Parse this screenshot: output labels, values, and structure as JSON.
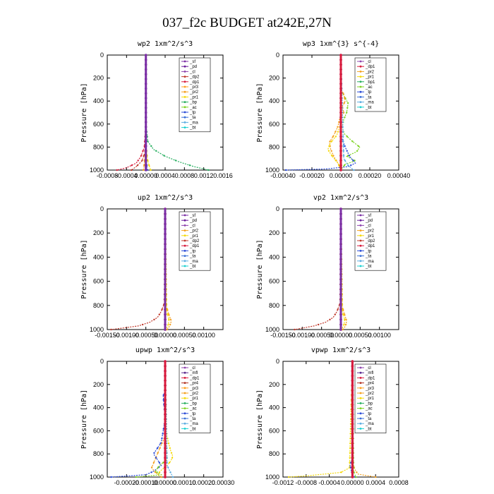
{
  "figure_title": "037_f2c  BUDGET at242E,27N",
  "colors": {
    "sf": "#7b2fa5",
    "pd": "#6a1b9a",
    "cl": "#8e44ad",
    "dp2": "#c0392b",
    "dp1": "#d81b3c",
    "pr3": "#ff9f1c",
    "pr2": "#f4a020",
    "pr1": "#f5d90a",
    "bp": "#27ae60",
    "ac": "#7ed321",
    "tp": "#2a4bd7",
    "ta": "#3a6fd8",
    "ma": "#5dade2",
    "bt": "#1bd1d1",
    "mfl": "#5b2c8f",
    "pr4": "#b03020",
    "frame": "#000000"
  },
  "chart_data": [
    {
      "type": "line",
      "title": "wp2   1xm^2/s^3",
      "ylabel": "Pressure  [hPa]",
      "ylim": [
        1000,
        0
      ],
      "xlim": [
        -0.0008,
        0.0016
      ],
      "xticks": [
        "-0.0008",
        "-0.0004",
        "0.00000",
        "0.0004",
        "0.0008",
        "0.0012",
        "0.0016"
      ],
      "xtick_values": [
        -0.0008,
        -0.0004,
        0.0,
        0.0004,
        0.0008,
        0.0012,
        0.0016
      ],
      "yticks": [
        "0",
        "200",
        "400",
        "600",
        "800",
        "1000"
      ],
      "ytick_values": [
        0,
        200,
        400,
        600,
        800,
        1000
      ],
      "legend": [
        "_sf",
        "_pd",
        "_cl",
        "_dp2",
        "_dp1",
        "_pr3",
        "_pr2",
        "_pr1",
        "_bp",
        "_ac",
        "_tp",
        "_ta",
        "_ma",
        "_bt"
      ],
      "series": [
        {
          "name": "_bp",
          "color": "bp",
          "p": [
            0,
            600,
            750,
            820,
            880,
            930,
            970,
            1000
          ],
          "x": [
            0,
            0,
            4e-05,
            0.00016,
            0.0004,
            0.0007,
            0.001,
            0.0013
          ]
        },
        {
          "name": "_dp1",
          "color": "dp1",
          "p": [
            0,
            600,
            800,
            880,
            940,
            980,
            1000
          ],
          "x": [
            0,
            0,
            -3e-05,
            -0.0001,
            -0.0002,
            -0.0004,
            -0.0006
          ]
        },
        {
          "name": "_dp2",
          "color": "dp2",
          "p": [
            0,
            700,
            850,
            920,
            970,
            1000
          ],
          "x": [
            0,
            0,
            -2e-05,
            -8e-05,
            -0.0002,
            -0.0003
          ]
        },
        {
          "name": "_pr1",
          "color": "pr1",
          "p": [
            0,
            800,
            900,
            950,
            1000
          ],
          "x": [
            0,
            1e-05,
            3e-05,
            6e-05,
            0.0001
          ]
        },
        {
          "name": "_pr2",
          "color": "pr2",
          "p": [
            0,
            850,
            930,
            1000
          ],
          "x": [
            0,
            -1e-05,
            -3e-05,
            -5e-05
          ]
        },
        {
          "name": "_tp",
          "color": "tp",
          "p": [
            0,
            900,
            1000
          ],
          "x": [
            0,
            1e-05,
            3e-05
          ]
        },
        {
          "name": "_sf",
          "color": "sf",
          "p": [
            0,
            1000
          ],
          "x": [
            0,
            0
          ]
        }
      ]
    },
    {
      "type": "line",
      "title": "wp3   1xm^{3} s^{-4}",
      "ylabel": "Pressure  [hPa]",
      "ylim": [
        1000,
        0
      ],
      "xlim": [
        -0.0004,
        0.0004
      ],
      "xticks": [
        "-0.00040",
        "-0.00020",
        "0.00000",
        "0.00020",
        "0.00040"
      ],
      "xtick_values": [
        -0.0004,
        -0.0002,
        0.0,
        0.0002,
        0.0004
      ],
      "yticks": [
        "0",
        "200",
        "400",
        "600",
        "800",
        "1000"
      ],
      "ytick_values": [
        0,
        200,
        400,
        600,
        800,
        1000
      ],
      "legend": [
        "_cl",
        "_dp1",
        "_pr2",
        "_pr1",
        "_bp1",
        "_ac",
        "_tp",
        "_ta",
        "_ma",
        "_bt"
      ],
      "series": [
        {
          "name": "_ac",
          "color": "ac",
          "p": [
            0,
            300,
            350,
            420,
            500,
            560,
            620,
            680,
            740,
            800,
            840,
            880,
            920,
            950,
            980,
            1000
          ],
          "x": [
            0,
            0,
            2e-05,
            5e-05,
            4e-05,
            2e-05,
            1e-05,
            2e-05,
            7e-05,
            0.00013,
            0.00011,
            4e-05,
            0.0001,
            3e-05,
            1e-05,
            0
          ]
        },
        {
          "name": "_pr2",
          "color": "pr2",
          "p": [
            0,
            300,
            340,
            400,
            450,
            500,
            560,
            620,
            700,
            760,
            820,
            880,
            940,
            1000
          ],
          "x": [
            0,
            0,
            2e-05,
            3e-05,
            1e-05,
            2e-05,
            -1e-05,
            -2e-05,
            -5e-05,
            -8e-05,
            -7e-05,
            -5e-05,
            -2e-05,
            0
          ]
        },
        {
          "name": "_pr1",
          "color": "pr1",
          "p": [
            0,
            600,
            700,
            760,
            820,
            880,
            940,
            1000
          ],
          "x": [
            0,
            0,
            -3e-05,
            -7e-05,
            -9e-05,
            -6e-05,
            -2e-05,
            0
          ]
        },
        {
          "name": "_tp",
          "color": "tp",
          "p": [
            0,
            700,
            800,
            880,
            940,
            970,
            990,
            1000
          ],
          "x": [
            0,
            0,
            3e-05,
            6e-05,
            0.0001,
            5e-05,
            -0.0001,
            -0.00038
          ]
        },
        {
          "name": "_ma",
          "color": "ma",
          "p": [
            0,
            900,
            960,
            1000
          ],
          "x": [
            0,
            2e-05,
            5e-05,
            9e-05
          ]
        },
        {
          "name": "_cl",
          "color": "cl",
          "p": [
            0,
            1000
          ],
          "x": [
            0,
            0
          ]
        },
        {
          "name": "_dp1",
          "color": "dp1",
          "p": [
            0,
            1000
          ],
          "x": [
            0,
            0
          ]
        }
      ]
    },
    {
      "type": "line",
      "title": "up2   1xm^2/s^3",
      "ylabel": "Pressure  [hPa]",
      "ylim": [
        1000,
        0
      ],
      "xlim": [
        -0.0015,
        0.0015
      ],
      "xticks": [
        "-0.00150",
        "-0.00100",
        "-0.00050",
        "0.00000",
        "0.00050",
        "0.00100"
      ],
      "xtick_values": [
        -0.0015,
        -0.001,
        -0.0005,
        0.0,
        0.0005,
        0.001
      ],
      "yticks": [
        "0",
        "200",
        "400",
        "600",
        "800",
        "1000"
      ],
      "ytick_values": [
        0,
        200,
        400,
        600,
        800,
        1000
      ],
      "legend": [
        "_sf",
        "_pd",
        "_cl",
        "_pr2",
        "_pr1",
        "_dp2",
        "_dp1",
        "_tp",
        "_ta",
        "_ma",
        "_bt"
      ],
      "series": [
        {
          "name": "_dp1",
          "color": "dp1",
          "p": [
            0,
            1000
          ],
          "x": [
            0,
            0
          ]
        },
        {
          "name": "_dp2",
          "color": "dp2",
          "p": [
            0,
            780,
            850,
            900,
            940,
            970,
            1000
          ],
          "x": [
            0,
            -2e-05,
            -0.0001,
            -0.0002,
            -0.0004,
            -0.0007,
            -0.0014
          ]
        },
        {
          "name": "_pr2",
          "color": "pr2",
          "p": [
            0,
            800,
            880,
            930,
            970,
            1000
          ],
          "x": [
            0,
            3e-05,
            0.0001,
            0.00016,
            0.00012,
            5e-05
          ]
        },
        {
          "name": "_pr1",
          "color": "pr1",
          "p": [
            0,
            850,
            920,
            960,
            1000
          ],
          "x": [
            0,
            4e-05,
            0.0001,
            8e-05,
            2e-05
          ]
        },
        {
          "name": "_sf",
          "color": "sf",
          "p": [
            0,
            1000
          ],
          "x": [
            0,
            0
          ]
        }
      ]
    },
    {
      "type": "line",
      "title": "vp2   1xm^2/s^3",
      "ylabel": "Pressure  [hPa]",
      "ylim": [
        1000,
        0
      ],
      "xlim": [
        -0.0015,
        0.0015
      ],
      "xticks": [
        "-0.00150",
        "-0.00100",
        "-0.00050",
        "0.00000",
        "0.00050",
        "0.00100"
      ],
      "xtick_values": [
        -0.0015,
        -0.001,
        -0.0005,
        0.0,
        0.0005,
        0.001
      ],
      "yticks": [
        "0",
        "200",
        "400",
        "600",
        "800",
        "1000"
      ],
      "ytick_values": [
        0,
        200,
        400,
        600,
        800,
        1000
      ],
      "legend": [
        "_sf",
        "_pd",
        "_cl",
        "_pr2",
        "_pr1",
        "_dp2",
        "_dp1",
        "_tp",
        "_ta",
        "_ma",
        "_bt"
      ],
      "series": [
        {
          "name": "_dp1",
          "color": "dp1",
          "p": [
            0,
            1000
          ],
          "x": [
            0,
            0
          ]
        },
        {
          "name": "_dp2",
          "color": "dp2",
          "p": [
            0,
            780,
            850,
            900,
            940,
            970,
            1000
          ],
          "x": [
            0,
            -2e-05,
            -0.0001,
            -0.0002,
            -0.0004,
            -0.0007,
            -0.0012
          ]
        },
        {
          "name": "_pr2",
          "color": "pr2",
          "p": [
            0,
            800,
            880,
            930,
            970,
            1000
          ],
          "x": [
            0,
            3e-05,
            0.0001,
            0.00015,
            0.00012,
            5e-05
          ]
        },
        {
          "name": "_pr1",
          "color": "pr1",
          "p": [
            0,
            850,
            920,
            960,
            1000
          ],
          "x": [
            0,
            4e-05,
            0.0001,
            8e-05,
            2e-05
          ]
        },
        {
          "name": "_sf",
          "color": "sf",
          "p": [
            0,
            1000
          ],
          "x": [
            0,
            0
          ]
        }
      ]
    },
    {
      "type": "line",
      "title": "upwp   1xm^2/s^3",
      "ylabel": "Pressure  [hPa]",
      "ylim": [
        1000,
        0
      ],
      "xlim": [
        -0.0003,
        0.0003
      ],
      "xticks": [
        "-0.00020",
        "-0.00010",
        "0.00000",
        "0.00010",
        "0.00020",
        "0.00030"
      ],
      "xtick_values": [
        -0.0002,
        -0.0001,
        0.0,
        0.0001,
        0.0002,
        0.0003
      ],
      "yticks": [
        "0",
        "200",
        "400",
        "600",
        "800",
        "1000"
      ],
      "ytick_values": [
        0,
        200,
        400,
        600,
        800,
        1000
      ],
      "legend": [
        "_cl",
        "_mfl",
        "_dp1",
        "_pr4",
        "_pr3",
        "_pr2",
        "_pr1",
        "_bp",
        "_ac",
        "_tp",
        "_ta",
        "_ma",
        "_bt"
      ],
      "series": [
        {
          "name": "_pr1",
          "color": "pr1",
          "p": [
            0,
            500,
            650,
            720,
            780,
            820,
            860,
            900,
            940,
            980,
            1000
          ],
          "x": [
            0,
            0,
            1e-05,
            2e-05,
            3e-05,
            4e-05,
            3e-05,
            1e-05,
            -2e-05,
            -4e-05,
            -2e-05
          ]
        },
        {
          "name": "_pr2",
          "color": "pr2",
          "p": [
            0,
            650,
            720,
            800,
            880,
            920,
            960,
            1000
          ],
          "x": [
            0,
            0,
            -2e-05,
            -4e-05,
            -6e-05,
            -7e-05,
            -5e-05,
            -2e-05
          ]
        },
        {
          "name": "_tp",
          "color": "tp",
          "p": [
            0,
            250,
            300,
            500,
            700,
            750,
            800,
            850,
            900,
            950,
            980,
            1000
          ],
          "x": [
            0,
            0,
            -1e-05,
            0,
            -2e-05,
            -4e-05,
            -6e-05,
            -4e-05,
            -2e-05,
            -6e-05,
            -0.0001,
            -0.00028
          ]
        },
        {
          "name": "_ac",
          "color": "ac",
          "p": [
            0,
            850,
            900,
            950,
            980,
            1000
          ],
          "x": [
            0,
            1e-05,
            -3e-05,
            -5e-05,
            -2e-05,
            -0.00015
          ]
        },
        {
          "name": "_ma",
          "color": "ma",
          "p": [
            0,
            900,
            1000
          ],
          "x": [
            0,
            1e-05,
            4e-05
          ]
        },
        {
          "name": "_cl",
          "color": "cl",
          "p": [
            0,
            1000
          ],
          "x": [
            0,
            0
          ]
        },
        {
          "name": "_dp1",
          "color": "dp1",
          "p": [
            0,
            1000
          ],
          "x": [
            0,
            0
          ]
        }
      ]
    },
    {
      "type": "line",
      "title": "vpwp   1xm^2/s^3",
      "ylabel": "Pressure  [hPa]",
      "ylim": [
        1000,
        0
      ],
      "xlim": [
        -0.0012,
        0.0008
      ],
      "xticks": [
        "-0.0012",
        "-0.0008",
        "-0.0004",
        "0.00000",
        "0.0004",
        "0.0008"
      ],
      "xtick_values": [
        -0.0012,
        -0.0008,
        -0.0004,
        0.0,
        0.0004,
        0.0008
      ],
      "yticks": [
        "0",
        "200",
        "400",
        "600",
        "800",
        "1000"
      ],
      "ytick_values": [
        0,
        200,
        400,
        600,
        800,
        1000
      ],
      "legend": [
        "_cl",
        "_mfl",
        "_dp1",
        "_pr4",
        "_pr3",
        "_pr2",
        "_pr1",
        "_bp",
        "_ac",
        "_tp",
        "_ta",
        "_ma",
        "_bt"
      ],
      "series": [
        {
          "name": "_pr2",
          "color": "pr2",
          "p": [
            0,
            880,
            920,
            950,
            975,
            1000
          ],
          "x": [
            0,
            1e-05,
            3e-05,
            6e-05,
            0.0001,
            0.0004
          ]
        },
        {
          "name": "_pr1",
          "color": "pr1",
          "p": [
            0,
            920,
            960,
            990,
            1000
          ],
          "x": [
            0,
            -5e-05,
            -0.0002,
            -0.0008,
            -0.0011
          ]
        },
        {
          "name": "_tp",
          "color": "tp",
          "p": [
            0,
            850,
            900,
            950,
            990,
            1000
          ],
          "x": [
            0,
            -1e-05,
            -4e-05,
            -2e-05,
            2e-05,
            5e-05
          ]
        },
        {
          "name": "_ac",
          "color": "ac",
          "p": [
            0,
            950,
            1000
          ],
          "x": [
            0,
            2e-05,
            6e-05
          ]
        },
        {
          "name": "_cl",
          "color": "cl",
          "p": [
            0,
            1000
          ],
          "x": [
            0,
            0
          ]
        },
        {
          "name": "_dp1",
          "color": "dp1",
          "p": [
            0,
            1000
          ],
          "x": [
            0,
            0
          ]
        }
      ]
    }
  ]
}
